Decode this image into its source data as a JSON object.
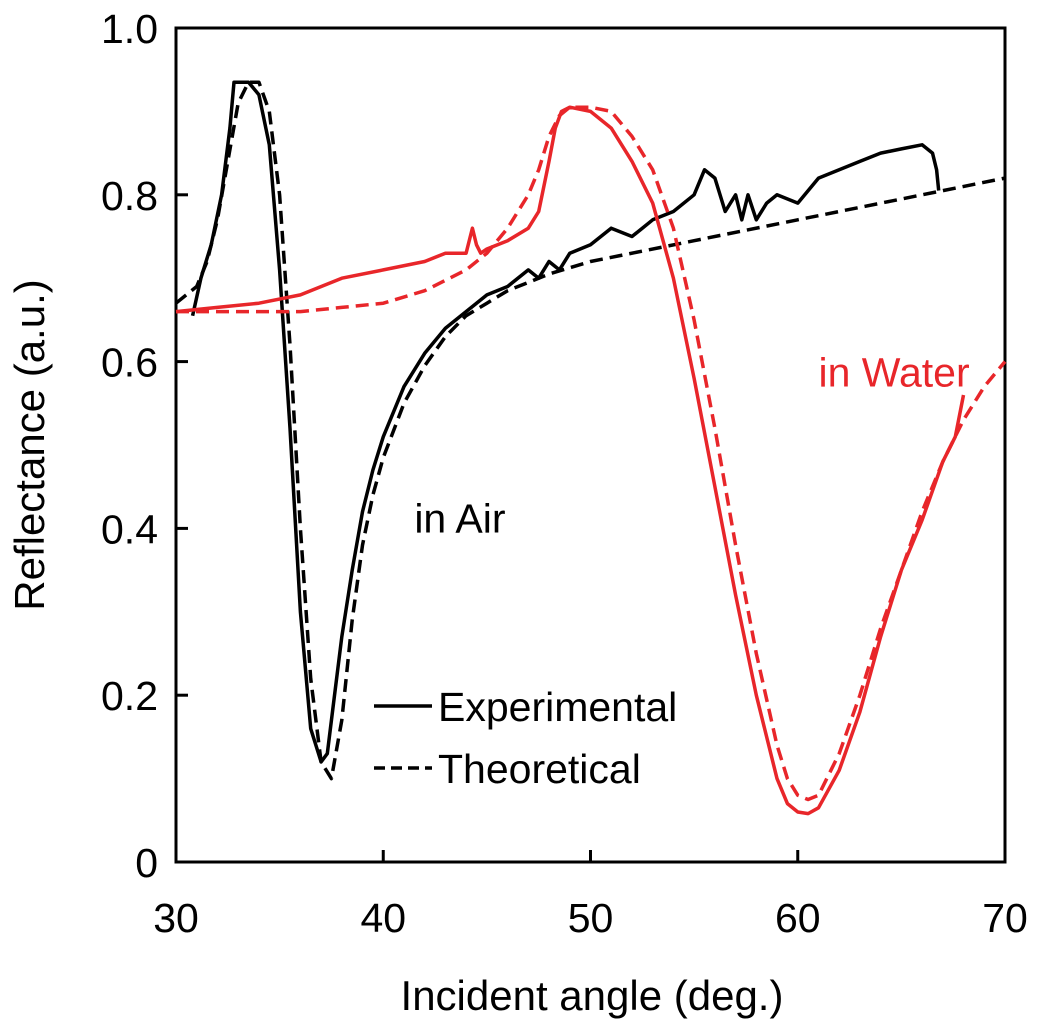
{
  "chart_data": {
    "type": "line",
    "title": "",
    "xlabel": "Incident angle (deg.)",
    "ylabel": "Reflectance (a.u.)",
    "xlim": [
      30,
      70
    ],
    "ylim": [
      0,
      1.0
    ],
    "x_ticks": [
      30,
      40,
      50,
      60,
      70
    ],
    "x_tick_labels": [
      "30",
      "40",
      "50",
      "60",
      "70"
    ],
    "y_ticks": [
      0,
      0.2,
      0.4,
      0.6,
      0.8,
      1.0
    ],
    "y_tick_labels": [
      "0",
      "0.2",
      "0.4",
      "0.6",
      "0.8",
      "1.0"
    ],
    "grid": false,
    "legend": {
      "placement": "bottom-center",
      "entries": [
        {
          "label": "Experimental",
          "style": "solid"
        },
        {
          "label": "Theoretical",
          "style": "dashed"
        }
      ]
    },
    "annotations": [
      {
        "text": "in Air",
        "x": 41.5,
        "y": 0.395,
        "color": "#000000"
      },
      {
        "text": "in Water",
        "x": 61.0,
        "y": 0.57,
        "color": "#e8262a"
      }
    ],
    "series": [
      {
        "name": "Air experimental",
        "group": "in Air",
        "style": "solid",
        "color": "#000000",
        "x": [
          30.8,
          31.2,
          31.7,
          32.2,
          32.6,
          32.8,
          33.0,
          33.5,
          34.0,
          34.5,
          35.0,
          35.5,
          36.0,
          36.5,
          37.0,
          37.3,
          37.6,
          38.0,
          38.5,
          39.0,
          39.5,
          40.0,
          41.0,
          42.0,
          43.0,
          44.0,
          45.0,
          46.0,
          47.0,
          47.5,
          48.0,
          48.5,
          49.0,
          50.0,
          51.0,
          52.0,
          52.5,
          53.0,
          54.0,
          55.0,
          55.5,
          56.0,
          56.5,
          57.0,
          57.3,
          57.6,
          58.0,
          58.5,
          59.0,
          60.0,
          61.0,
          62.0,
          63.0,
          64.0,
          65.0,
          66.0,
          66.5,
          66.7,
          66.8
        ],
        "values": [
          0.655,
          0.7,
          0.74,
          0.8,
          0.88,
          0.935,
          0.935,
          0.935,
          0.92,
          0.86,
          0.71,
          0.52,
          0.3,
          0.16,
          0.12,
          0.13,
          0.19,
          0.27,
          0.35,
          0.42,
          0.47,
          0.51,
          0.57,
          0.61,
          0.64,
          0.66,
          0.68,
          0.69,
          0.71,
          0.7,
          0.72,
          0.71,
          0.73,
          0.74,
          0.76,
          0.75,
          0.76,
          0.77,
          0.78,
          0.8,
          0.83,
          0.82,
          0.78,
          0.8,
          0.77,
          0.8,
          0.77,
          0.79,
          0.8,
          0.79,
          0.82,
          0.83,
          0.84,
          0.85,
          0.855,
          0.86,
          0.85,
          0.83,
          0.805
        ]
      },
      {
        "name": "Air theoretical",
        "group": "in Air",
        "style": "dashed",
        "color": "#000000",
        "x": [
          30.0,
          31.0,
          31.5,
          32.0,
          32.5,
          33.0,
          33.5,
          34.0,
          34.5,
          35.0,
          35.5,
          36.0,
          36.5,
          37.0,
          37.5,
          38.0,
          38.5,
          39.0,
          39.5,
          40.0,
          41.0,
          42.0,
          43.0,
          44.0,
          45.0,
          46.0,
          47.0,
          48.0,
          50.0,
          55.0,
          60.0,
          65.0,
          70.0
        ],
        "values": [
          0.67,
          0.69,
          0.72,
          0.77,
          0.84,
          0.91,
          0.935,
          0.935,
          0.9,
          0.8,
          0.62,
          0.4,
          0.22,
          0.12,
          0.1,
          0.17,
          0.29,
          0.38,
          0.44,
          0.485,
          0.55,
          0.595,
          0.63,
          0.655,
          0.67,
          0.685,
          0.695,
          0.705,
          0.72,
          0.745,
          0.77,
          0.795,
          0.82
        ]
      },
      {
        "name": "Water experimental",
        "group": "in Water",
        "style": "solid",
        "color": "#e8262a",
        "x": [
          30.0,
          32.0,
          34.0,
          36.0,
          38.0,
          40.0,
          42.0,
          43.0,
          44.0,
          44.3,
          44.5,
          44.7,
          45.0,
          46.0,
          47.0,
          47.5,
          48.0,
          48.3,
          48.6,
          49.0,
          50.0,
          51.0,
          52.0,
          53.0,
          54.0,
          55.0,
          56.0,
          57.0,
          58.0,
          59.0,
          59.5,
          60.0,
          60.5,
          61.0,
          62.0,
          63.0,
          64.0,
          65.0,
          66.0,
          67.0,
          67.6,
          68.0
        ],
        "values": [
          0.66,
          0.665,
          0.67,
          0.68,
          0.7,
          0.71,
          0.72,
          0.73,
          0.73,
          0.76,
          0.74,
          0.73,
          0.735,
          0.745,
          0.76,
          0.78,
          0.84,
          0.88,
          0.9,
          0.905,
          0.9,
          0.88,
          0.84,
          0.79,
          0.7,
          0.58,
          0.45,
          0.32,
          0.2,
          0.1,
          0.07,
          0.06,
          0.058,
          0.065,
          0.11,
          0.18,
          0.27,
          0.35,
          0.41,
          0.48,
          0.51,
          0.56
        ]
      },
      {
        "name": "Water theoretical",
        "group": "in Water",
        "style": "dashed",
        "color": "#e8262a",
        "x": [
          30.0,
          32.0,
          34.0,
          36.0,
          38.0,
          40.0,
          42.0,
          44.0,
          45.0,
          46.0,
          47.0,
          47.5,
          48.0,
          48.5,
          49.0,
          49.5,
          50.0,
          51.0,
          52.0,
          53.0,
          54.0,
          55.0,
          56.0,
          57.0,
          58.0,
          59.0,
          59.5,
          60.0,
          60.5,
          61.0,
          62.0,
          63.0,
          64.0,
          65.0,
          66.0,
          67.0,
          68.0,
          69.0,
          70.0
        ],
        "values": [
          0.66,
          0.66,
          0.66,
          0.66,
          0.665,
          0.67,
          0.685,
          0.71,
          0.73,
          0.76,
          0.8,
          0.83,
          0.87,
          0.895,
          0.905,
          0.905,
          0.905,
          0.9,
          0.87,
          0.83,
          0.76,
          0.65,
          0.52,
          0.38,
          0.25,
          0.14,
          0.1,
          0.08,
          0.075,
          0.08,
          0.13,
          0.2,
          0.28,
          0.35,
          0.42,
          0.48,
          0.53,
          0.57,
          0.6
        ]
      }
    ]
  }
}
